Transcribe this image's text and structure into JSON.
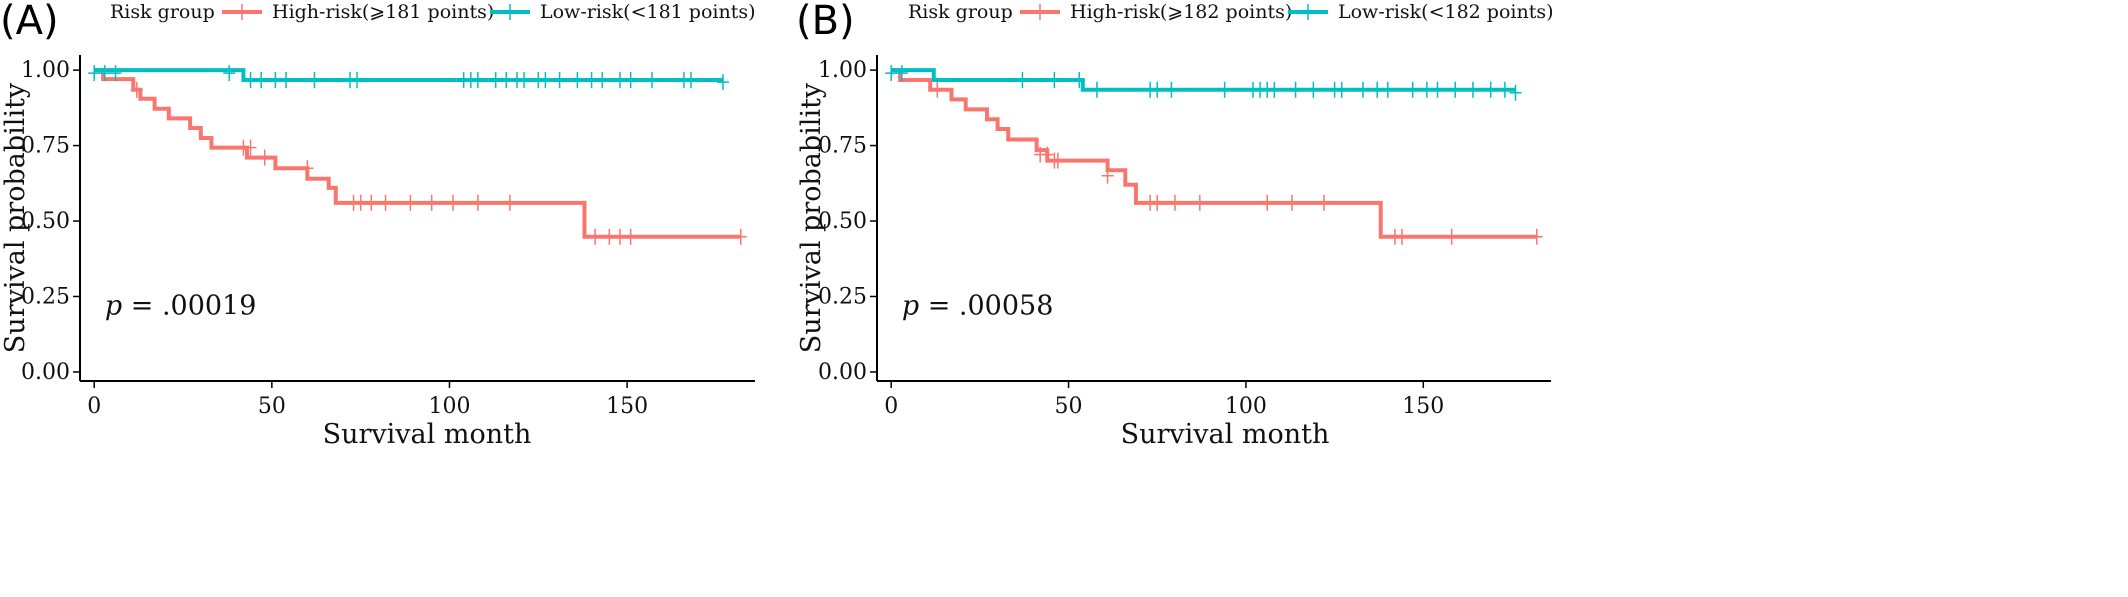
{
  "chart_data": [
    {
      "type": "line",
      "subtype": "kaplan-meier",
      "panel_label": "(A)",
      "legend": {
        "title": "Risk group",
        "placement": "top",
        "entries": [
          {
            "name": "High-risk(⩾181 points)",
            "color": "#F8766D"
          },
          {
            "name": "Low-risk(<181 points)",
            "color": "#00BFC4"
          }
        ]
      },
      "xlabel": "Survival month",
      "ylabel": "Survival probability",
      "xlim": [
        -4,
        186
      ],
      "ylim": [
        -0.03,
        1.05
      ],
      "xticks": [
        0,
        50,
        100,
        150
      ],
      "yticks": [
        0,
        0.25,
        0.5,
        0.75,
        1
      ],
      "ytick_labels": [
        "0.00",
        "0.25",
        "0.50",
        "0.75",
        "1.00"
      ],
      "grid": false,
      "annotation": {
        "italic": "p",
        "text": " = .00019",
        "x": 3,
        "y": 0.19
      },
      "series": [
        {
          "name": "High-risk(⩾181 points)",
          "color": "#F8766D",
          "steps": [
            [
              0,
              1
            ],
            [
              2.5,
              0.97
            ],
            [
              11,
              0.935
            ],
            [
              13,
              0.905
            ],
            [
              17,
              0.872
            ],
            [
              21,
              0.84
            ],
            [
              27,
              0.808
            ],
            [
              30,
              0.775
            ],
            [
              33,
              0.743
            ],
            [
              43,
              0.71
            ],
            [
              51,
              0.675
            ],
            [
              60,
              0.64
            ],
            [
              66,
              0.61
            ],
            [
              68,
              0.56
            ],
            [
              138,
              0.448
            ],
            [
              182,
              0.448
            ]
          ],
          "censored": [
            [
              12,
              0.935
            ],
            [
              42,
              0.743
            ],
            [
              44,
              0.743
            ],
            [
              48,
              0.71
            ],
            [
              60,
              0.675
            ],
            [
              73,
              0.56
            ],
            [
              75,
              0.56
            ],
            [
              78,
              0.56
            ],
            [
              82,
              0.56
            ],
            [
              89,
              0.56
            ],
            [
              95,
              0.56
            ],
            [
              101,
              0.56
            ],
            [
              108,
              0.56
            ],
            [
              117,
              0.56
            ],
            [
              141,
              0.448
            ],
            [
              145,
              0.448
            ],
            [
              148,
              0.448
            ],
            [
              151,
              0.448
            ],
            [
              182,
              0.448
            ]
          ]
        },
        {
          "name": "Low-risk(<181 points)",
          "color": "#00BFC4",
          "steps": [
            [
              0,
              1
            ],
            [
              42,
              0.967
            ],
            [
              177,
              0.967
            ]
          ],
          "censored": [
            [
              0,
              0.99
            ],
            [
              3,
              0.99
            ],
            [
              6,
              0.99
            ],
            [
              38,
              0.99
            ],
            [
              44,
              0.967
            ],
            [
              47,
              0.967
            ],
            [
              51,
              0.967
            ],
            [
              54,
              0.967
            ],
            [
              62,
              0.967
            ],
            [
              72,
              0.967
            ],
            [
              74,
              0.967
            ],
            [
              104,
              0.967
            ],
            [
              106,
              0.967
            ],
            [
              108,
              0.967
            ],
            [
              113,
              0.967
            ],
            [
              116,
              0.967
            ],
            [
              119,
              0.967
            ],
            [
              121,
              0.967
            ],
            [
              125,
              0.967
            ],
            [
              127,
              0.967
            ],
            [
              131,
              0.967
            ],
            [
              136,
              0.967
            ],
            [
              140,
              0.967
            ],
            [
              143,
              0.967
            ],
            [
              148,
              0.967
            ],
            [
              151,
              0.967
            ],
            [
              157,
              0.967
            ],
            [
              166,
              0.967
            ],
            [
              168,
              0.967
            ],
            [
              177,
              0.96
            ]
          ]
        }
      ]
    },
    {
      "type": "line",
      "subtype": "kaplan-meier",
      "panel_label": "(B)",
      "legend": {
        "title": "Risk group",
        "placement": "top",
        "entries": [
          {
            "name": "High-risk(⩾182 points)",
            "color": "#F8766D"
          },
          {
            "name": "Low-risk(<182 points)",
            "color": "#00BFC4"
          }
        ]
      },
      "xlabel": "Survival month",
      "ylabel": "Survival probability",
      "xlim": [
        -4,
        186
      ],
      "ylim": [
        -0.03,
        1.05
      ],
      "xticks": [
        0,
        50,
        100,
        150
      ],
      "yticks": [
        0,
        0.25,
        0.5,
        0.75,
        1
      ],
      "ytick_labels": [
        "0.00",
        "0.25",
        "0.50",
        "0.75",
        "1.00"
      ],
      "grid": false,
      "annotation": {
        "italic": "p",
        "text": " = .00058",
        "x": 3,
        "y": 0.19
      },
      "series": [
        {
          "name": "High-risk(⩾182 points)",
          "color": "#F8766D",
          "steps": [
            [
              0,
              1
            ],
            [
              2.5,
              0.967
            ],
            [
              11,
              0.935
            ],
            [
              17,
              0.903
            ],
            [
              21,
              0.87
            ],
            [
              27,
              0.837
            ],
            [
              30,
              0.805
            ],
            [
              33,
              0.77
            ],
            [
              41,
              0.735
            ],
            [
              44,
              0.7
            ],
            [
              61,
              0.668
            ],
            [
              66,
              0.62
            ],
            [
              69,
              0.56
            ],
            [
              138,
              0.448
            ],
            [
              182,
              0.448
            ]
          ],
          "censored": [
            [
              13,
              0.935
            ],
            [
              42,
              0.72
            ],
            [
              44,
              0.72
            ],
            [
              46,
              0.7
            ],
            [
              47,
              0.7
            ],
            [
              61,
              0.65
            ],
            [
              73,
              0.56
            ],
            [
              75,
              0.56
            ],
            [
              80,
              0.56
            ],
            [
              87,
              0.56
            ],
            [
              106,
              0.56
            ],
            [
              113,
              0.56
            ],
            [
              122,
              0.56
            ],
            [
              142,
              0.448
            ],
            [
              144,
              0.448
            ],
            [
              158,
              0.448
            ],
            [
              182,
              0.448
            ]
          ]
        },
        {
          "name": "Low-risk(<182 points)",
          "color": "#00BFC4",
          "steps": [
            [
              0,
              1
            ],
            [
              12,
              0.967
            ],
            [
              54,
              0.935
            ],
            [
              176,
              0.935
            ]
          ],
          "censored": [
            [
              0,
              0.99
            ],
            [
              3,
              0.99
            ],
            [
              37,
              0.967
            ],
            [
              46,
              0.967
            ],
            [
              53,
              0.967
            ],
            [
              58,
              0.935
            ],
            [
              73,
              0.935
            ],
            [
              75,
              0.935
            ],
            [
              79,
              0.935
            ],
            [
              94,
              0.935
            ],
            [
              102,
              0.935
            ],
            [
              104,
              0.935
            ],
            [
              106,
              0.935
            ],
            [
              108,
              0.935
            ],
            [
              114,
              0.935
            ],
            [
              119,
              0.935
            ],
            [
              125,
              0.935
            ],
            [
              127,
              0.935
            ],
            [
              133,
              0.935
            ],
            [
              137,
              0.935
            ],
            [
              140,
              0.935
            ],
            [
              147,
              0.935
            ],
            [
              151,
              0.935
            ],
            [
              154,
              0.935
            ],
            [
              159,
              0.935
            ],
            [
              164,
              0.935
            ],
            [
              169,
              0.935
            ],
            [
              173,
              0.935
            ],
            [
              176,
              0.925
            ]
          ]
        }
      ]
    }
  ]
}
